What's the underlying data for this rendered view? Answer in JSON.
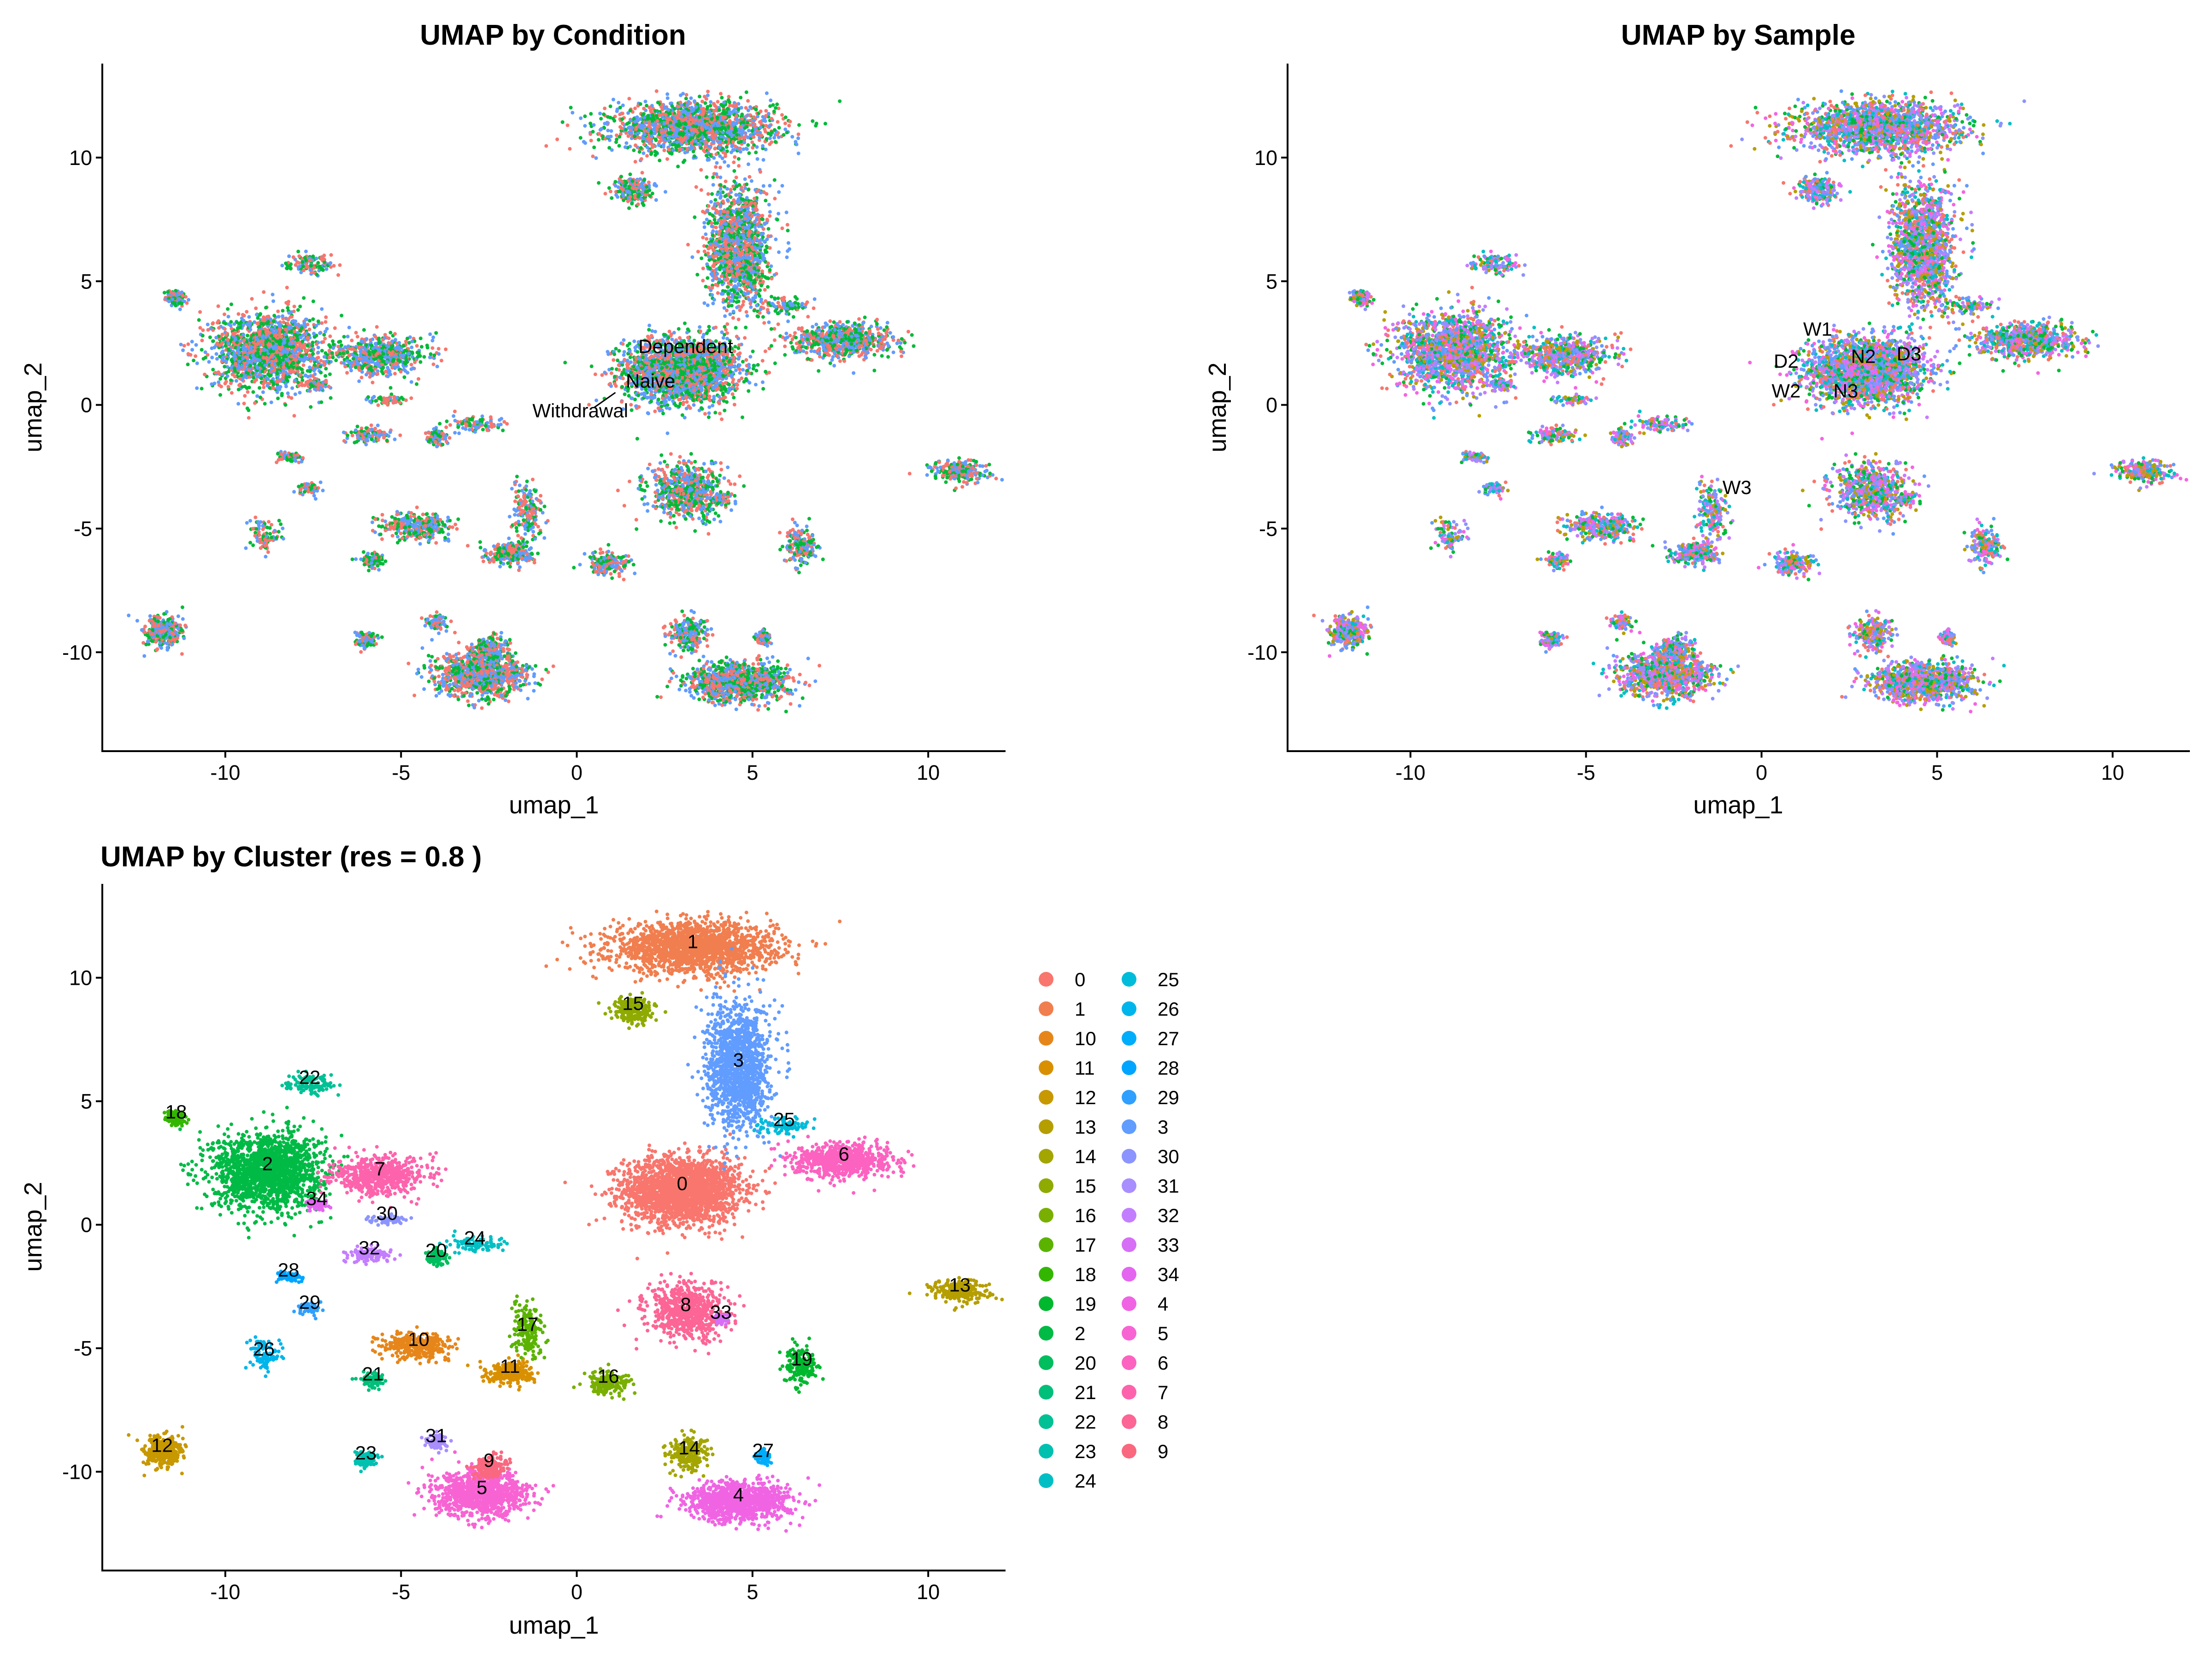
{
  "chart_data": [
    {
      "type": "scatter",
      "title": "UMAP by Condition",
      "xlabel": "umap_1",
      "ylabel": "umap_2",
      "xlim": [
        -13.5,
        12.2
      ],
      "ylim": [
        -14,
        13.8
      ],
      "xticks": [
        -10,
        -5,
        0,
        5,
        10
      ],
      "yticks": [
        -10,
        -5,
        0,
        5,
        10
      ],
      "tick_labels_x": [
        "-10",
        "-5",
        "0",
        "5",
        "10"
      ],
      "tick_labels_y": [
        "-10",
        "-5",
        "0",
        "5",
        "10"
      ],
      "group_palette": [
        "#F8766D",
        "#00BA38",
        "#619CFF"
      ],
      "labels": [
        {
          "text": "Dependent",
          "x": 3.1,
          "y": 2.1
        },
        {
          "text": "Naive",
          "x": 2.1,
          "y": 0.7
        },
        {
          "text": "Withdrawal",
          "x": 0.1,
          "y": -0.5
        }
      ]
    },
    {
      "type": "scatter",
      "title": "UMAP by Sample",
      "xlabel": "umap_1",
      "ylabel": "umap_2",
      "xlim": [
        -13.5,
        12.2
      ],
      "ylim": [
        -14,
        13.8
      ],
      "xticks": [
        -10,
        -5,
        0,
        5,
        10
      ],
      "yticks": [
        -10,
        -5,
        0,
        5,
        10
      ],
      "tick_labels_x": [
        "-10",
        "-5",
        "0",
        "5",
        "10"
      ],
      "tick_labels_y": [
        "-10",
        "-5",
        "0",
        "5",
        "10"
      ],
      "group_palette": [
        "#F8766D",
        "#B79F00",
        "#00BA38",
        "#00BFC4",
        "#619CFF",
        "#F564E3",
        "#8B93FF",
        "#C77CFF"
      ],
      "labels": [
        {
          "text": "W1",
          "x": 1.6,
          "y": 2.8
        },
        {
          "text": "D2",
          "x": 0.7,
          "y": 1.5
        },
        {
          "text": "N2",
          "x": 2.9,
          "y": 1.7
        },
        {
          "text": "D3",
          "x": 4.2,
          "y": 1.8
        },
        {
          "text": "W2",
          "x": 0.7,
          "y": 0.3
        },
        {
          "text": "N3",
          "x": 2.4,
          "y": 0.3
        },
        {
          "text": "W3",
          "x": -0.7,
          "y": -3.6
        }
      ]
    },
    {
      "type": "scatter",
      "title": "UMAP by Cluster (res = 0.8 )",
      "xlabel": "umap_1",
      "ylabel": "umap_2",
      "xlim": [
        -13.5,
        12.2
      ],
      "ylim": [
        -14,
        13.8
      ],
      "xticks": [
        -10,
        -5,
        0,
        5,
        10
      ],
      "yticks": [
        -10,
        -5,
        0,
        5,
        10
      ],
      "tick_labels_x": [
        "-10",
        "-5",
        "0",
        "5",
        "10"
      ],
      "tick_labels_y": [
        "-10",
        "-5",
        "0",
        "5",
        "10"
      ],
      "legend": {
        "placement": "right",
        "entries": [
          "0",
          "1",
          "10",
          "11",
          "12",
          "13",
          "14",
          "15",
          "16",
          "17",
          "18",
          "19",
          "2",
          "20",
          "21",
          "22",
          "23",
          "24",
          "25",
          "26",
          "27",
          "28",
          "29",
          "3",
          "30",
          "31",
          "32",
          "33",
          "34",
          "4",
          "5",
          "6",
          "7",
          "8",
          "9"
        ],
        "colors": [
          "#F8766D",
          "#F17E4F",
          "#E6861A",
          "#D99000",
          "#C79800",
          "#B59E00",
          "#A3A500",
          "#8FAA00",
          "#79AF00",
          "#5BB300",
          "#33B600",
          "#00B82E",
          "#00BA46",
          "#00BD5E",
          "#00BF7A",
          "#00C095",
          "#00C0B0",
          "#00BFC4",
          "#00BBDA",
          "#00B5EB",
          "#00ADFA",
          "#00A5FF",
          "#2FA0FF",
          "#619CFF",
          "#8C94FF",
          "#A98EFF",
          "#C37EFF",
          "#D66EF6",
          "#E465F0",
          "#F064E3",
          "#F863D3",
          "#FC62C0",
          "#FD63AC",
          "#FC6595",
          "#F9687F"
        ]
      },
      "clusters": [
        {
          "id": "0",
          "x": 3,
          "y": 1.4
        },
        {
          "id": "1",
          "x": 3.3,
          "y": 11.2
        },
        {
          "id": "2",
          "x": -8.8,
          "y": 2.2
        },
        {
          "id": "3",
          "x": 4.6,
          "y": 6.4
        },
        {
          "id": "4",
          "x": 4.6,
          "y": -11.2
        },
        {
          "id": "5",
          "x": -2.7,
          "y": -10.9
        },
        {
          "id": "6",
          "x": 7.6,
          "y": 2.6
        },
        {
          "id": "7",
          "x": -5.6,
          "y": 2
        },
        {
          "id": "8",
          "x": 3.1,
          "y": -3.5
        },
        {
          "id": "9",
          "x": -2.5,
          "y": -9.8
        },
        {
          "id": "10",
          "x": -4.5,
          "y": -4.9
        },
        {
          "id": "11",
          "x": -1.9,
          "y": -6
        },
        {
          "id": "12",
          "x": -11.8,
          "y": -9.2
        },
        {
          "id": "13",
          "x": 10.9,
          "y": -2.7
        },
        {
          "id": "14",
          "x": 3.2,
          "y": -9.3
        },
        {
          "id": "15",
          "x": 1.6,
          "y": 8.7
        },
        {
          "id": "16",
          "x": 0.9,
          "y": -6.4
        },
        {
          "id": "17",
          "x": -1.4,
          "y": -4.3
        },
        {
          "id": "18",
          "x": -11.4,
          "y": 4.3
        },
        {
          "id": "19",
          "x": 6.4,
          "y": -5.7
        },
        {
          "id": "20",
          "x": -4,
          "y": -1.3
        },
        {
          "id": "21",
          "x": -5.8,
          "y": -6.3
        },
        {
          "id": "22",
          "x": -7.6,
          "y": 5.7
        },
        {
          "id": "23",
          "x": -6,
          "y": -9.5
        },
        {
          "id": "24",
          "x": -2.9,
          "y": -0.8
        },
        {
          "id": "25",
          "x": 5.9,
          "y": 4
        },
        {
          "id": "26",
          "x": -8.9,
          "y": -5.3
        },
        {
          "id": "27",
          "x": 5.3,
          "y": -9.4
        },
        {
          "id": "28",
          "x": -8.2,
          "y": -2.1
        },
        {
          "id": "29",
          "x": -7.6,
          "y": -3.4
        },
        {
          "id": "30",
          "x": -5.4,
          "y": 0.2
        },
        {
          "id": "31",
          "x": -4,
          "y": -8.8
        },
        {
          "id": "32",
          "x": -5.9,
          "y": -1.2
        },
        {
          "id": "33",
          "x": 4.1,
          "y": -3.8
        },
        {
          "id": "34",
          "x": -7.4,
          "y": 0.8
        }
      ]
    }
  ]
}
